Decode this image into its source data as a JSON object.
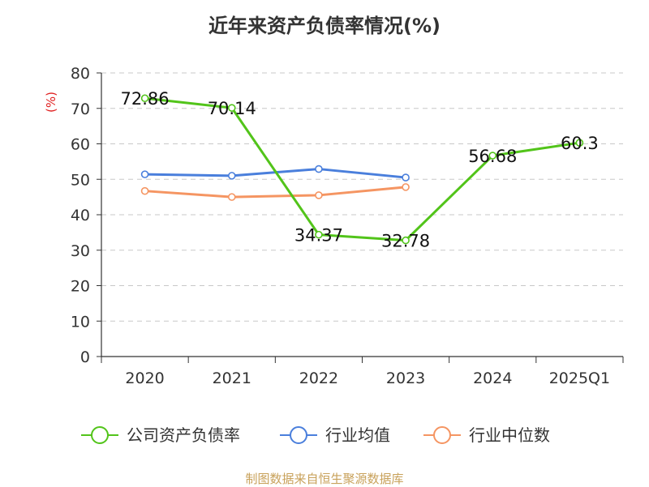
{
  "title": "近年来资产负债率情况(%)",
  "source": "制图数据来自恒生聚源数据库",
  "chart_data": {
    "type": "line",
    "title": "近年来资产负债率情况(%)",
    "ylabel": "(%)",
    "xlabel": "",
    "categories": [
      "2020",
      "2021",
      "2022",
      "2023",
      "2024",
      "2025Q1"
    ],
    "y_ticks": [
      0,
      10,
      20,
      30,
      40,
      50,
      60,
      70,
      80
    ],
    "ylim": [
      0,
      80
    ],
    "grid": "horizontal-dashed",
    "legend_position": "bottom",
    "series": [
      {
        "name": "公司资产负债率",
        "color": "#52c41a",
        "values": [
          72.86,
          70.14,
          34.37,
          32.78,
          56.68,
          60.3
        ],
        "labels": [
          "72.86",
          "70.14",
          "34.37",
          "32.78",
          "56.68",
          "60.3"
        ],
        "show_labels": true
      },
      {
        "name": "行业均值",
        "color": "#4a7fdc",
        "values": [
          51.4,
          51.0,
          52.9,
          50.5,
          null,
          null
        ],
        "show_labels": false
      },
      {
        "name": "行业中位数",
        "color": "#f59562",
        "values": [
          46.7,
          45.0,
          45.5,
          47.8,
          null,
          null
        ],
        "show_labels": false
      }
    ]
  }
}
